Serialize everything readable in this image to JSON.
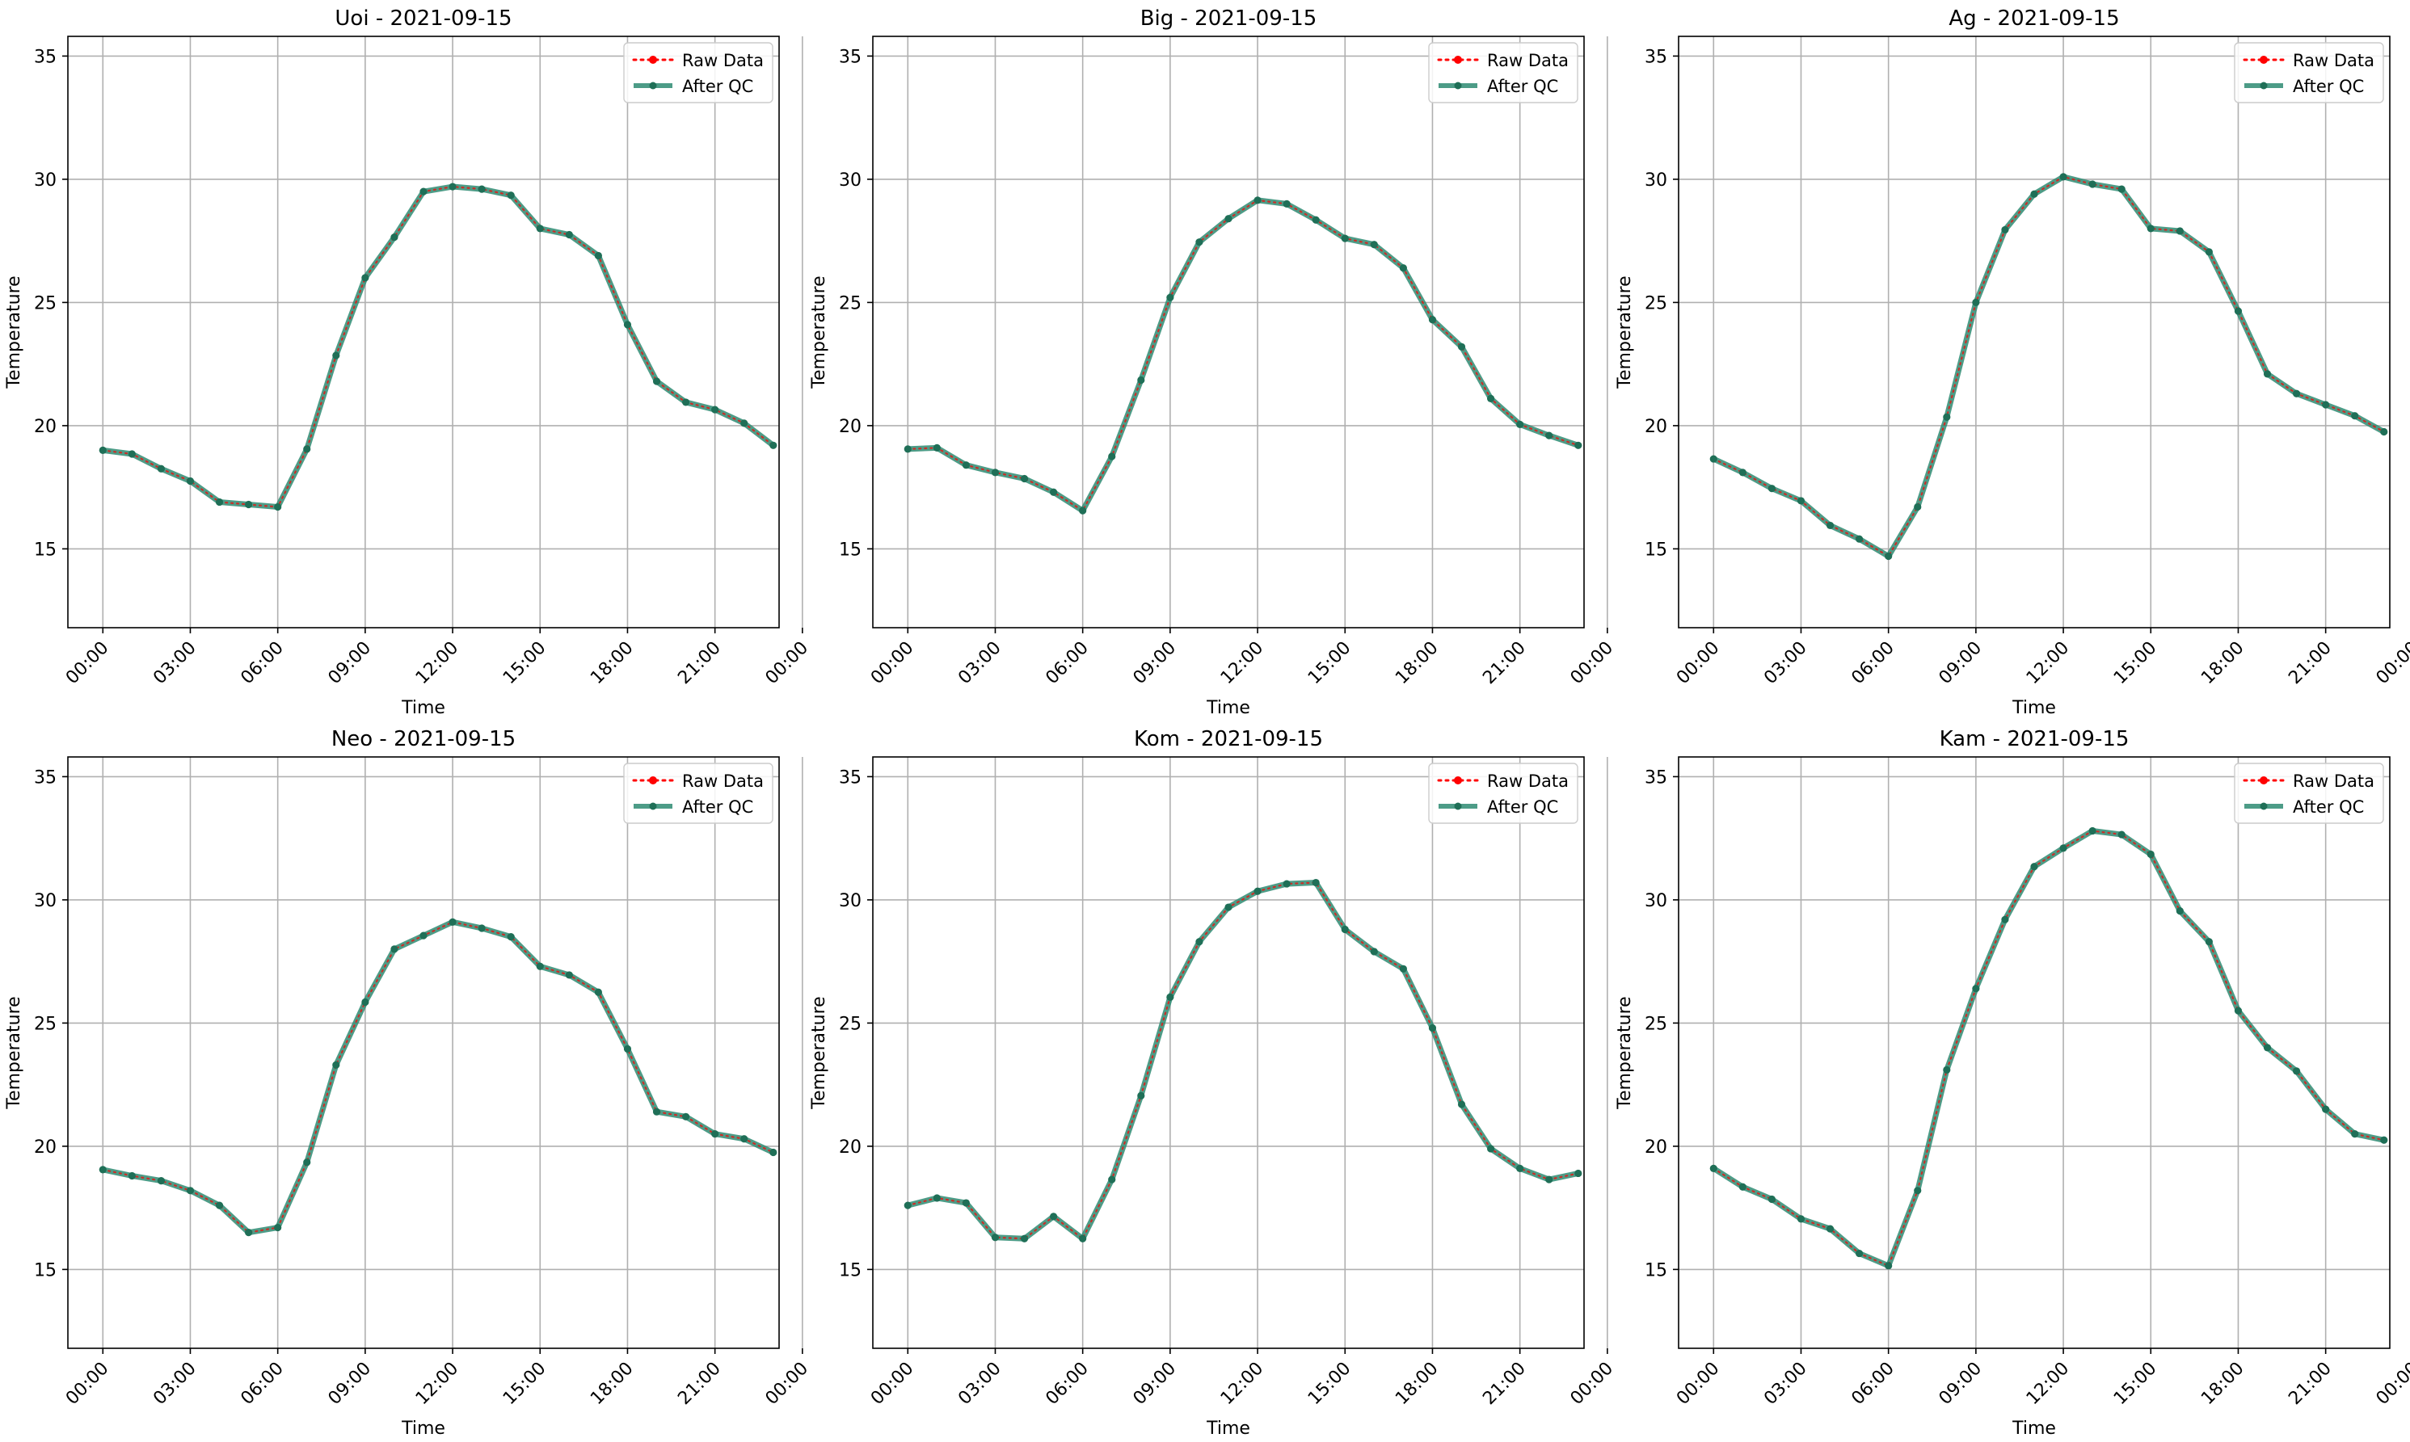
{
  "colors": {
    "raw": "#ff0000",
    "qc": "#2e8b72",
    "grid": "#b0b0b0",
    "axis": "#000000"
  },
  "chart_data": [
    {
      "type": "line",
      "title": "Uoi - 2021-09-15",
      "xlabel": "Time",
      "ylabel": "Temperature",
      "ylim": [
        11.8,
        35.8
      ],
      "xlim": [
        -1.2,
        23.2
      ],
      "yticks": [
        15,
        20,
        25,
        30,
        35
      ],
      "xticks": [
        "00:00",
        "03:00",
        "06:00",
        "09:00",
        "12:00",
        "15:00",
        "18:00",
        "21:00",
        "00:00"
      ],
      "grid": true,
      "legend": "top-right",
      "x": [
        "00:00",
        "01:00",
        "02:00",
        "03:00",
        "04:00",
        "05:00",
        "06:00",
        "07:00",
        "08:00",
        "09:00",
        "10:00",
        "11:00",
        "12:00",
        "13:00",
        "14:00",
        "15:00",
        "16:00",
        "17:00",
        "18:00",
        "19:00",
        "20:00",
        "21:00",
        "22:00",
        "23:00"
      ],
      "series": [
        {
          "name": "Raw Data",
          "values": [
            19.0,
            18.85,
            18.25,
            17.75,
            16.9,
            16.8,
            16.7,
            19.05,
            22.85,
            26.0,
            27.65,
            29.5,
            29.7,
            29.6,
            29.35,
            28.0,
            27.75,
            26.9,
            24.1,
            21.8,
            20.95,
            20.65,
            20.1,
            19.2
          ]
        },
        {
          "name": "After QC",
          "values": [
            19.0,
            18.85,
            18.25,
            17.75,
            16.9,
            16.8,
            16.7,
            19.05,
            22.85,
            26.0,
            27.65,
            29.5,
            29.7,
            29.6,
            29.35,
            28.0,
            27.75,
            26.9,
            24.1,
            21.8,
            20.95,
            20.65,
            20.1,
            19.2
          ]
        }
      ]
    },
    {
      "type": "line",
      "title": "Big - 2021-09-15",
      "xlabel": "Time",
      "ylabel": "Temperature",
      "ylim": [
        11.8,
        35.8
      ],
      "xlim": [
        -1.2,
        23.2
      ],
      "yticks": [
        15,
        20,
        25,
        30,
        35
      ],
      "xticks": [
        "00:00",
        "03:00",
        "06:00",
        "09:00",
        "12:00",
        "15:00",
        "18:00",
        "21:00",
        "00:00"
      ],
      "grid": true,
      "legend": "top-right",
      "x": [
        "00:00",
        "01:00",
        "02:00",
        "03:00",
        "04:00",
        "05:00",
        "06:00",
        "07:00",
        "08:00",
        "09:00",
        "10:00",
        "11:00",
        "12:00",
        "13:00",
        "14:00",
        "15:00",
        "16:00",
        "17:00",
        "18:00",
        "19:00",
        "20:00",
        "21:00",
        "22:00",
        "23:00"
      ],
      "series": [
        {
          "name": "Raw Data",
          "values": [
            19.05,
            19.1,
            18.4,
            18.1,
            17.85,
            17.3,
            16.55,
            18.75,
            21.85,
            25.2,
            27.45,
            28.4,
            29.15,
            29.0,
            28.35,
            27.6,
            27.35,
            26.4,
            24.3,
            23.2,
            21.1,
            20.05,
            19.6,
            19.2
          ]
        },
        {
          "name": "After QC",
          "values": [
            19.05,
            19.1,
            18.4,
            18.1,
            17.85,
            17.3,
            16.55,
            18.75,
            21.85,
            25.2,
            27.45,
            28.4,
            29.15,
            29.0,
            28.35,
            27.6,
            27.35,
            26.4,
            24.3,
            23.2,
            21.1,
            20.05,
            19.6,
            19.2
          ]
        }
      ]
    },
    {
      "type": "line",
      "title": "Ag - 2021-09-15",
      "xlabel": "Time",
      "ylabel": "Temperature",
      "ylim": [
        11.8,
        35.8
      ],
      "xlim": [
        -1.2,
        23.2
      ],
      "yticks": [
        15,
        20,
        25,
        30,
        35
      ],
      "xticks": [
        "00:00",
        "03:00",
        "06:00",
        "09:00",
        "12:00",
        "15:00",
        "18:00",
        "21:00",
        "00:00"
      ],
      "grid": true,
      "legend": "top-right",
      "x": [
        "00:00",
        "01:00",
        "02:00",
        "03:00",
        "04:00",
        "05:00",
        "06:00",
        "07:00",
        "08:00",
        "09:00",
        "10:00",
        "11:00",
        "12:00",
        "13:00",
        "14:00",
        "15:00",
        "16:00",
        "17:00",
        "18:00",
        "19:00",
        "20:00",
        "21:00",
        "22:00",
        "23:00"
      ],
      "series": [
        {
          "name": "Raw Data",
          "values": [
            18.65,
            18.1,
            17.45,
            16.95,
            15.95,
            15.4,
            14.7,
            16.7,
            20.35,
            25.0,
            27.95,
            29.4,
            30.1,
            29.8,
            29.6,
            28.0,
            27.9,
            27.05,
            24.65,
            22.1,
            21.3,
            20.85,
            20.4,
            19.75
          ]
        },
        {
          "name": "After QC",
          "values": [
            18.65,
            18.1,
            17.45,
            16.95,
            15.95,
            15.4,
            14.7,
            16.7,
            20.35,
            25.0,
            27.95,
            29.4,
            30.1,
            29.8,
            29.6,
            28.0,
            27.9,
            27.05,
            24.65,
            22.1,
            21.3,
            20.85,
            20.4,
            19.75
          ]
        }
      ]
    },
    {
      "type": "line",
      "title": "Neo - 2021-09-15",
      "xlabel": "Time",
      "ylabel": "Temperature",
      "ylim": [
        11.8,
        35.8
      ],
      "xlim": [
        -1.2,
        23.2
      ],
      "yticks": [
        15,
        20,
        25,
        30,
        35
      ],
      "xticks": [
        "00:00",
        "03:00",
        "06:00",
        "09:00",
        "12:00",
        "15:00",
        "18:00",
        "21:00",
        "00:00"
      ],
      "grid": true,
      "legend": "top-right",
      "x": [
        "00:00",
        "01:00",
        "02:00",
        "03:00",
        "04:00",
        "05:00",
        "06:00",
        "07:00",
        "08:00",
        "09:00",
        "10:00",
        "11:00",
        "12:00",
        "13:00",
        "14:00",
        "15:00",
        "16:00",
        "17:00",
        "18:00",
        "19:00",
        "20:00",
        "21:00",
        "22:00",
        "23:00"
      ],
      "series": [
        {
          "name": "Raw Data",
          "values": [
            19.05,
            18.8,
            18.6,
            18.2,
            17.6,
            16.5,
            16.7,
            19.35,
            23.3,
            25.85,
            28.0,
            28.55,
            29.1,
            28.85,
            28.5,
            27.3,
            26.95,
            26.25,
            23.95,
            21.4,
            21.2,
            20.5,
            20.3,
            19.75
          ]
        },
        {
          "name": "After QC",
          "values": [
            19.05,
            18.8,
            18.6,
            18.2,
            17.6,
            16.5,
            16.7,
            19.35,
            23.3,
            25.85,
            28.0,
            28.55,
            29.1,
            28.85,
            28.5,
            27.3,
            26.95,
            26.25,
            23.95,
            21.4,
            21.2,
            20.5,
            20.3,
            19.75
          ]
        }
      ]
    },
    {
      "type": "line",
      "title": "Kom - 2021-09-15",
      "xlabel": "Time",
      "ylabel": "Temperature",
      "ylim": [
        11.8,
        35.8
      ],
      "xlim": [
        -1.2,
        23.2
      ],
      "yticks": [
        15,
        20,
        25,
        30,
        35
      ],
      "xticks": [
        "00:00",
        "03:00",
        "06:00",
        "09:00",
        "12:00",
        "15:00",
        "18:00",
        "21:00",
        "00:00"
      ],
      "grid": true,
      "legend": "top-right",
      "x": [
        "00:00",
        "01:00",
        "02:00",
        "03:00",
        "04:00",
        "05:00",
        "06:00",
        "07:00",
        "08:00",
        "09:00",
        "10:00",
        "11:00",
        "12:00",
        "13:00",
        "14:00",
        "15:00",
        "16:00",
        "17:00",
        "18:00",
        "19:00",
        "20:00",
        "21:00",
        "22:00",
        "23:00"
      ],
      "series": [
        {
          "name": "Raw Data",
          "values": [
            17.6,
            17.9,
            17.7,
            16.3,
            16.25,
            17.15,
            16.25,
            18.65,
            22.05,
            26.05,
            28.3,
            29.7,
            30.35,
            30.65,
            30.7,
            28.8,
            27.9,
            27.2,
            24.8,
            21.7,
            19.9,
            19.1,
            18.65,
            18.9
          ]
        },
        {
          "name": "After QC",
          "values": [
            17.6,
            17.9,
            17.7,
            16.3,
            16.25,
            17.15,
            16.25,
            18.65,
            22.05,
            26.05,
            28.3,
            29.7,
            30.35,
            30.65,
            30.7,
            28.8,
            27.9,
            27.2,
            24.8,
            21.7,
            19.9,
            19.1,
            18.65,
            18.9
          ]
        }
      ]
    },
    {
      "type": "line",
      "title": "Kam - 2021-09-15",
      "xlabel": "Time",
      "ylabel": "Temperature",
      "ylim": [
        11.8,
        35.8
      ],
      "xlim": [
        -1.2,
        23.2
      ],
      "yticks": [
        15,
        20,
        25,
        30,
        35
      ],
      "xticks": [
        "00:00",
        "03:00",
        "06:00",
        "09:00",
        "12:00",
        "15:00",
        "18:00",
        "21:00",
        "00:00"
      ],
      "grid": true,
      "legend": "top-right",
      "x": [
        "00:00",
        "01:00",
        "02:00",
        "03:00",
        "04:00",
        "05:00",
        "06:00",
        "07:00",
        "08:00",
        "09:00",
        "10:00",
        "11:00",
        "12:00",
        "13:00",
        "14:00",
        "15:00",
        "16:00",
        "17:00",
        "18:00",
        "19:00",
        "20:00",
        "21:00",
        "22:00",
        "23:00"
      ],
      "series": [
        {
          "name": "Raw Data",
          "values": [
            19.1,
            18.35,
            17.85,
            17.05,
            16.65,
            15.65,
            15.15,
            18.2,
            23.1,
            26.4,
            29.2,
            31.35,
            32.1,
            32.8,
            32.65,
            31.85,
            29.55,
            28.3,
            25.5,
            24.0,
            23.05,
            21.5,
            20.5,
            20.25
          ]
        },
        {
          "name": "After QC",
          "values": [
            19.1,
            18.35,
            17.85,
            17.05,
            16.65,
            15.65,
            15.15,
            18.2,
            23.1,
            26.4,
            29.2,
            31.35,
            32.1,
            32.8,
            32.65,
            31.85,
            29.55,
            28.3,
            25.5,
            24.0,
            23.05,
            21.5,
            20.5,
            20.25
          ]
        }
      ]
    }
  ]
}
